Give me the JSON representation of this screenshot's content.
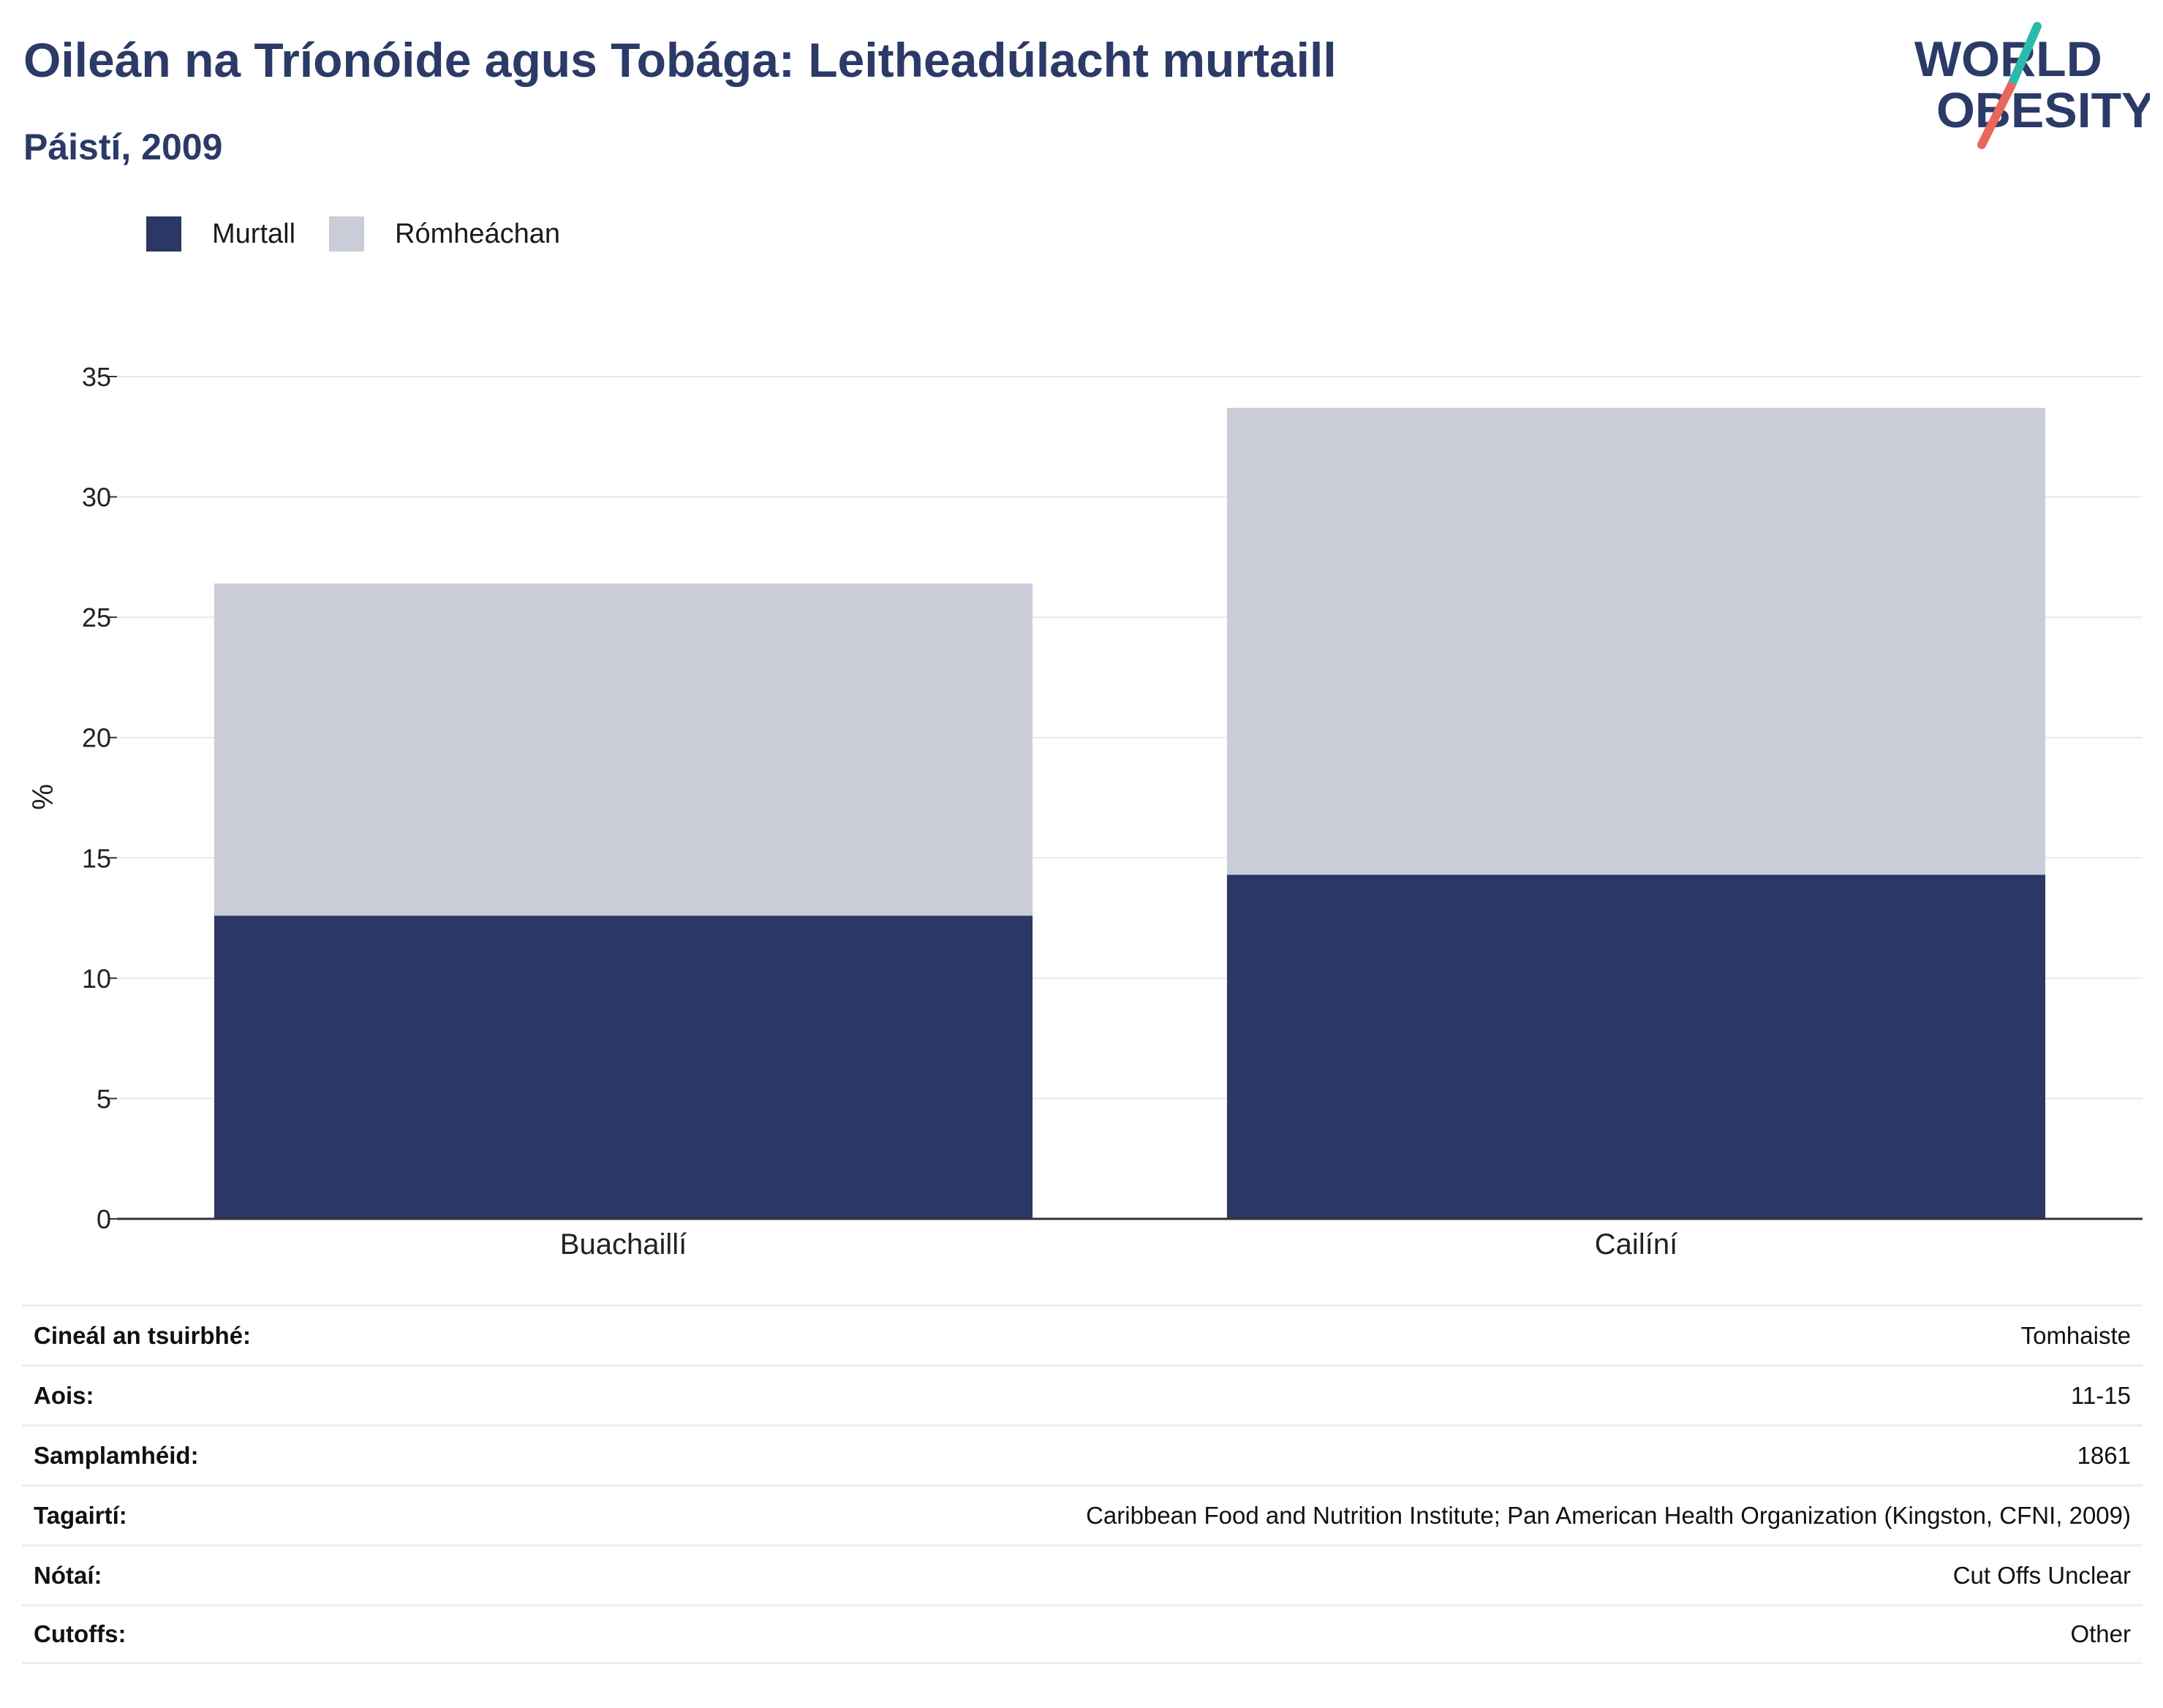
{
  "header": {
    "title": "Oileán na Tríonóide agus Tobága: Leitheadúlacht murtaill",
    "subtitle": "Páistí, 2009"
  },
  "logo": {
    "line1": "WORLD",
    "line2": "OBESITY"
  },
  "colors": {
    "title": "#2b3a67",
    "obese": "#2b3765",
    "overweight": "#cacdd8",
    "grid": "#e8e9ee",
    "logo_teal": "#2bbbad",
    "logo_coral": "#e8675a"
  },
  "legend": [
    {
      "label": "Murtall",
      "color": "#2b3765"
    },
    {
      "label": "Rómheáchan",
      "color": "#cacdd8"
    }
  ],
  "chart_data": {
    "type": "bar",
    "stacked": true,
    "categories": [
      "Buachaillí",
      "Cailíní"
    ],
    "series": [
      {
        "name": "Murtall",
        "values": [
          12.6,
          14.3
        ]
      },
      {
        "name": "Rómheáchan",
        "values": [
          13.8,
          19.4
        ]
      }
    ],
    "totals": [
      26.4,
      33.7
    ],
    "ylabel": "%",
    "xlabel": "",
    "ylim": [
      0,
      35
    ],
    "yticks": [
      0,
      5,
      10,
      15,
      20,
      25,
      30,
      35
    ],
    "grid": true,
    "legend_position": "top-left"
  },
  "info_table": [
    {
      "label": "Cineál an tsuirbhé:",
      "value": "Tomhaiste"
    },
    {
      "label": "Aois:",
      "value": "11-15"
    },
    {
      "label": "Samplamhéid:",
      "value": "1861"
    },
    {
      "label": "Tagairtí:",
      "value": "Caribbean Food and Nutrition Institute; Pan American Health Organization (Kingston, CFNI, 2009)"
    },
    {
      "label": "Nótaí:",
      "value": "Cut Offs Unclear"
    },
    {
      "label": "Cutoffs:",
      "value": "Other"
    }
  ]
}
